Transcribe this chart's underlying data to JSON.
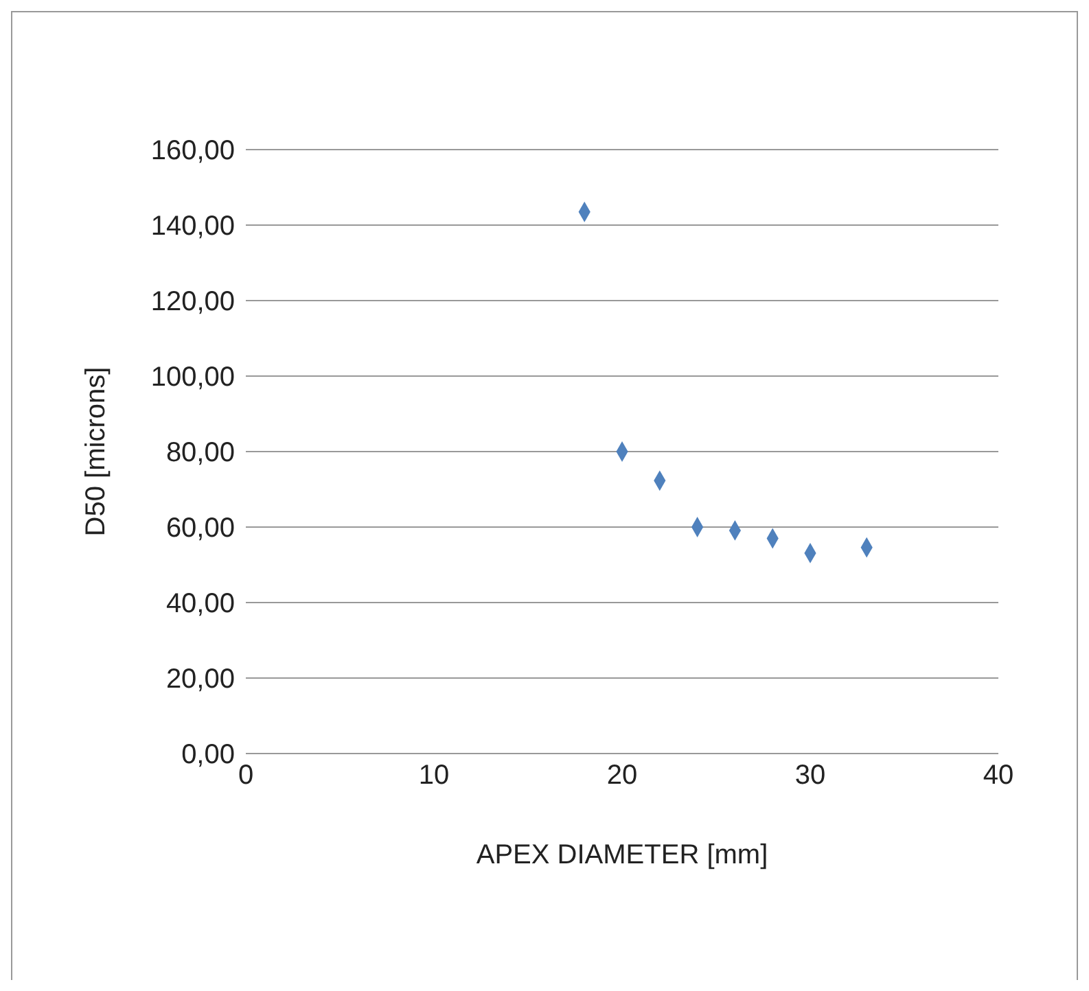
{
  "chart_data": {
    "type": "scatter",
    "xlabel": "APEX DIAMETER [mm]",
    "ylabel": "D50 [microns]",
    "x": [
      18,
      20,
      22,
      24,
      26,
      28,
      30,
      33
    ],
    "values": [
      143.5,
      80,
      72.3,
      60,
      59.1,
      57,
      53.1,
      54.6
    ],
    "color": "#4f81bd",
    "marker": "diamond",
    "grid": "y",
    "legend": false,
    "xlim": [
      0,
      40
    ],
    "xticks": [
      0,
      10,
      20,
      30,
      40
    ],
    "ylim": [
      0,
      160
    ],
    "yticks": [
      {
        "value": 0,
        "label": "0,00"
      },
      {
        "value": 20,
        "label": "20,00"
      },
      {
        "value": 40,
        "label": "40,00"
      },
      {
        "value": 60,
        "label": "60,00"
      },
      {
        "value": 80,
        "label": "80,00"
      },
      {
        "value": 100,
        "label": "100,00"
      },
      {
        "value": 120,
        "label": "120,00"
      },
      {
        "value": 140,
        "label": "140,00"
      },
      {
        "value": 160,
        "label": "160,00"
      }
    ]
  }
}
